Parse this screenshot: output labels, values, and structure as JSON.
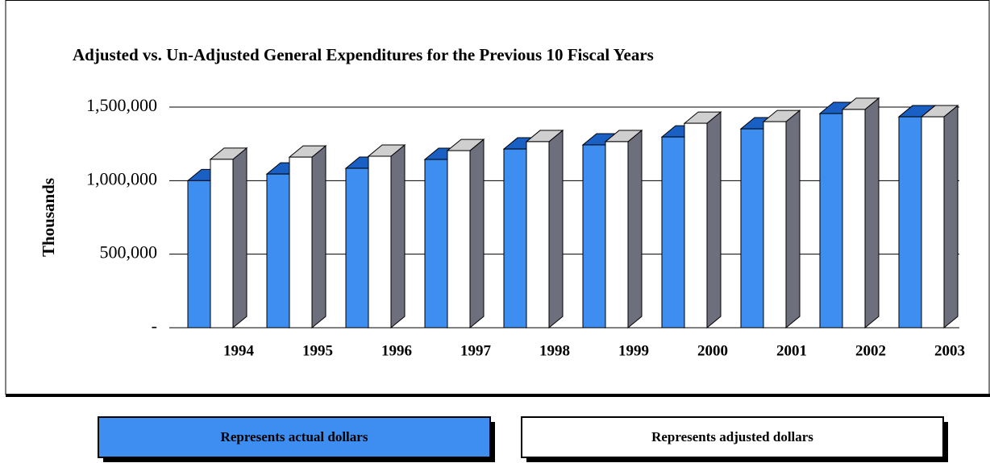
{
  "chart_data": {
    "type": "bar3d",
    "title": "Adjusted vs. Un-Adjusted General Expenditures for the Previous 10 Fiscal Years",
    "y_label": "Thousands",
    "categories": [
      "1994",
      "1995",
      "1996",
      "1997",
      "1998",
      "1999",
      "2000",
      "2001",
      "2002",
      "2003"
    ],
    "series": [
      {
        "name": "Represents actual dollars",
        "color": "#3d8ef0",
        "values": [
          1000000,
          1045000,
          1084000,
          1144000,
          1215000,
          1243000,
          1297000,
          1352000,
          1456000,
          1434000
        ]
      },
      {
        "name": "Represents adjusted dollars",
        "color": "#ffffff",
        "values": [
          1145000,
          1160000,
          1166000,
          1204000,
          1265000,
          1265000,
          1390000,
          1401000,
          1484000,
          1434000
        ]
      }
    ],
    "ylim": [
      0,
      1500000
    ],
    "yticks": [
      {
        "value": 0,
        "label": "-"
      },
      {
        "value": 500000,
        "label": "500,000"
      },
      {
        "value": 1000000,
        "label": "1,000,000"
      },
      {
        "value": 1500000,
        "label": "1,500,000"
      }
    ],
    "grid": true
  }
}
